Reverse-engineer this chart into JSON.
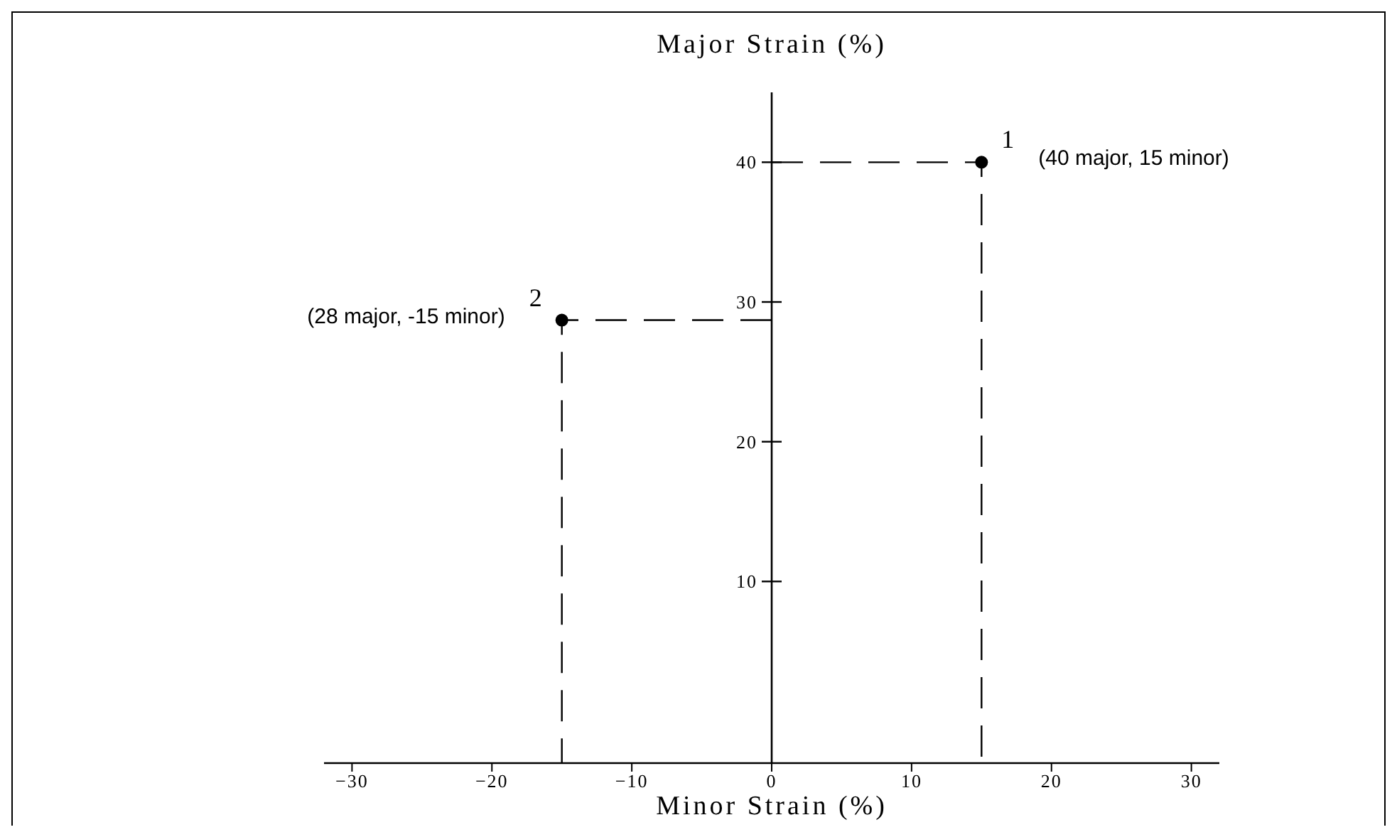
{
  "chart_data": {
    "type": "scatter",
    "title": "Major Strain (%)",
    "xlabel": "Minor Strain (%)",
    "xlim": [
      -32,
      32
    ],
    "xticks": [
      -30,
      -20,
      -10,
      0,
      10,
      20,
      30
    ],
    "ylim": [
      -3,
      45
    ],
    "yticks": [
      10,
      20,
      30,
      40
    ],
    "line_style": "dashed",
    "grid": false,
    "series": [
      {
        "type": "line",
        "x": [
          0,
          15,
          15
        ],
        "values": [
          40,
          40,
          -3
        ],
        "color": "#000000"
      },
      {
        "type": "line",
        "x": [
          0,
          -15,
          -15
        ],
        "values": [
          28.7,
          28.7,
          -3
        ],
        "color": "#000000"
      },
      {
        "x": [
          15,
          -15
        ],
        "values": [
          40,
          28.7
        ],
        "color": "#000000",
        "marker": "circle"
      }
    ],
    "annotations": [
      "1",
      {
        "text": "(40 major, 15 minor)",
        "x": 15,
        "y": 40
      },
      "2",
      {
        "text": "(28 major, -15 minor)",
        "x": -15,
        "y": 28.7
      }
    ]
  }
}
